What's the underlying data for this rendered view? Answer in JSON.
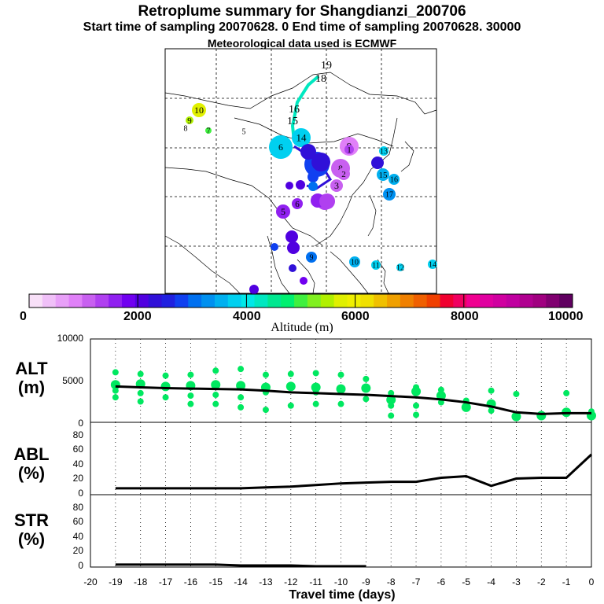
{
  "header": {
    "title": "Retroplume summary for Shangdianzi_200706",
    "subtitle": "Start time of sampling 20070628.    0     End time of sampling 20070628. 30000",
    "met_note": "Meteorological data used is ECMWF"
  },
  "colorbar": {
    "labels": [
      "0",
      "2000",
      "4000",
      "6000",
      "8000",
      "10000"
    ],
    "title": "Altitude (m)",
    "colors": [
      "#f8e0f8",
      "#f0c0f8",
      "#e8a0f8",
      "#e080f8",
      "#c860f0",
      "#b040f0",
      "#9020f0",
      "#7000f0",
      "#5000e0",
      "#3010d8",
      "#2020e0",
      "#1040f0",
      "#0070f0",
      "#0090f0",
      "#00b0f0",
      "#00d0f0",
      "#00e8e8",
      "#00e8c0",
      "#00e890",
      "#00f070",
      "#40f040",
      "#80f020",
      "#b0f000",
      "#e0f000",
      "#f0f000",
      "#f0e000",
      "#f0c000",
      "#f0a000",
      "#f08000",
      "#f06000",
      "#f04000",
      "#f00030",
      "#f00060",
      "#f00090",
      "#e000a0",
      "#d000a0",
      "#c000a0",
      "#b00090",
      "#a00080",
      "#800070",
      "#600060"
    ]
  },
  "map_markers": [
    {
      "label": "19",
      "color": "#00e8c0"
    },
    {
      "label": "18",
      "color": "#00e8c0"
    },
    {
      "label": "16",
      "color": "#00e8c0"
    },
    {
      "label": "15",
      "color": "#00e8c0"
    },
    {
      "label": "10",
      "color": "#e0f000"
    },
    {
      "label": "9",
      "color": "#b0f000"
    },
    {
      "label": "8",
      "color": "#80f020"
    },
    {
      "label": "7",
      "color": "#40f040"
    },
    {
      "label": "6",
      "color": "#00d0f0"
    },
    {
      "label": "5",
      "color": "#00d0f0"
    },
    {
      "label": "14",
      "color": "#00d0f0"
    },
    {
      "label": "9",
      "color": "#e080f8"
    },
    {
      "label": "12",
      "color": "#1040f0"
    },
    {
      "label": "8",
      "color": "#c860f0"
    },
    {
      "label": "2",
      "color": "#c860f0"
    },
    {
      "label": "4",
      "color": "#b040f0"
    },
    {
      "label": "3",
      "color": "#c860f0"
    },
    {
      "label": "6",
      "color": "#9020f0"
    },
    {
      "label": "5",
      "color": "#9020f0"
    },
    {
      "label": "1",
      "color": "#b040f0"
    },
    {
      "label": "15",
      "color": "#00b0f0"
    },
    {
      "label": "16",
      "color": "#00b0f0"
    },
    {
      "label": "17",
      "color": "#0090f0"
    },
    {
      "label": "13",
      "color": "#00d0f0"
    },
    {
      "label": "9",
      "color": "#0070f0"
    },
    {
      "label": "10",
      "color": "#00b0f0"
    },
    {
      "label": "11",
      "color": "#00d0f0"
    },
    {
      "label": "12",
      "color": "#00d0f0"
    },
    {
      "label": "14",
      "color": "#00d0f0"
    }
  ],
  "chart_data": [
    {
      "type": "scatter",
      "panel": "ALT",
      "ylabel": "ALT\n(m)",
      "ylabel_line1": "ALT",
      "ylabel_line2": "(m)",
      "ylim": [
        0,
        10000
      ],
      "yticks": [
        "10000",
        "5000",
        "0"
      ],
      "x": [
        -19,
        -18,
        -17,
        -16,
        -15,
        -14,
        -13,
        -12,
        -11,
        -10,
        -9,
        -8,
        -7,
        -6,
        -5,
        -4,
        -3,
        -2,
        -1,
        0
      ],
      "series": [
        {
          "name": "median altitude",
          "values": [
            4300,
            4200,
            4100,
            4050,
            4000,
            3950,
            3800,
            3600,
            3500,
            3400,
            3300,
            3150,
            3000,
            2750,
            2400,
            1900,
            1200,
            1000,
            1100,
            1100
          ]
        }
      ]
    },
    {
      "type": "line",
      "panel": "ABL",
      "ylabel_line1": "ABL",
      "ylabel_line2": "(%)",
      "ylim": [
        0,
        90
      ],
      "yticks": [
        "80",
        "60",
        "40",
        "20",
        "0"
      ],
      "x": [
        -19,
        -18,
        -17,
        -16,
        -15,
        -14,
        -13,
        -12,
        -11,
        -10,
        -9,
        -8,
        -7,
        -6,
        -5,
        -4,
        -3,
        -2,
        -1,
        0
      ],
      "series": [
        {
          "name": "ABL fraction",
          "values": [
            8,
            8,
            8,
            8,
            8,
            8,
            9,
            10,
            12,
            14,
            15,
            16,
            16,
            21,
            23,
            11,
            20,
            21,
            21,
            50
          ]
        }
      ]
    },
    {
      "type": "line",
      "panel": "STR",
      "ylabel_line1": "STR",
      "ylabel_line2": "(%)",
      "ylim": [
        0,
        90
      ],
      "yticks": [
        "80",
        "60",
        "40",
        "20",
        "0"
      ],
      "x": [
        -19,
        -18,
        -17,
        -16,
        -15,
        -14,
        -13,
        -12,
        -11,
        -10,
        -9
      ],
      "series": [
        {
          "name": "stratospheric fraction",
          "values": [
            3,
            3,
            3,
            3,
            3,
            2,
            2,
            2,
            1,
            1,
            1
          ]
        }
      ]
    }
  ],
  "xaxis": {
    "ticks": [
      "-20",
      "-19",
      "-18",
      "-17",
      "-16",
      "-15",
      "-14",
      "-13",
      "-12",
      "-11",
      "-10",
      "-9",
      "-8",
      "-7",
      "-6",
      "-5",
      "-4",
      "-3",
      "-2",
      "-1",
      "0"
    ],
    "label": "Travel time (days)"
  }
}
